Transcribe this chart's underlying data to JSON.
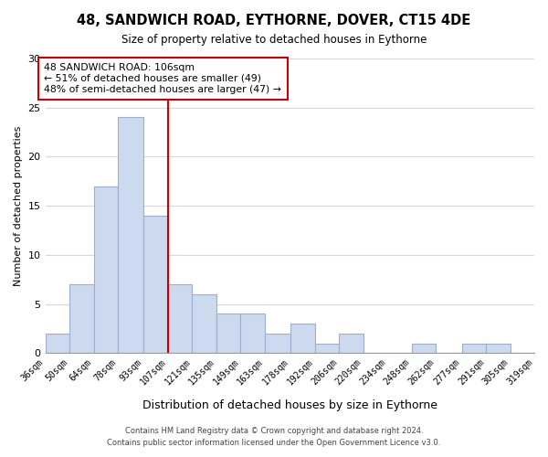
{
  "title": "48, SANDWICH ROAD, EYTHORNE, DOVER, CT15 4DE",
  "subtitle": "Size of property relative to detached houses in Eythorne",
  "xlabel": "Distribution of detached houses by size in Eythorne",
  "ylabel": "Number of detached properties",
  "bins": [
    36,
    50,
    64,
    78,
    93,
    107,
    121,
    135,
    149,
    163,
    178,
    192,
    206,
    220,
    234,
    248,
    262,
    277,
    291,
    305,
    319
  ],
  "bin_labels": [
    "36sqm",
    "50sqm",
    "64sqm",
    "78sqm",
    "93sqm",
    "107sqm",
    "121sqm",
    "135sqm",
    "149sqm",
    "163sqm",
    "178sqm",
    "192sqm",
    "206sqm",
    "220sqm",
    "234sqm",
    "248sqm",
    "262sqm",
    "277sqm",
    "291sqm",
    "305sqm",
    "319sqm"
  ],
  "counts": [
    2,
    7,
    17,
    24,
    14,
    7,
    6,
    4,
    4,
    2,
    3,
    1,
    2,
    0,
    0,
    1,
    0,
    1,
    1,
    0
  ],
  "bar_color": "#ccd9ee",
  "bar_edge_color": "#9ab0d0",
  "reference_line_x": 107,
  "reference_line_color": "#cc0000",
  "ylim": [
    0,
    30
  ],
  "yticks": [
    0,
    5,
    10,
    15,
    20,
    25,
    30
  ],
  "annotation_title": "48 SANDWICH ROAD: 106sqm",
  "annotation_line1": "← 51% of detached houses are smaller (49)",
  "annotation_line2": "48% of semi-detached houses are larger (47) →",
  "annotation_box_color": "#ffffff",
  "annotation_box_edge_color": "#cc0000",
  "footer_line1": "Contains HM Land Registry data © Crown copyright and database right 2024.",
  "footer_line2": "Contains public sector information licensed under the Open Government Licence v3.0.",
  "background_color": "#ffffff",
  "grid_color": "#d8d8d8"
}
